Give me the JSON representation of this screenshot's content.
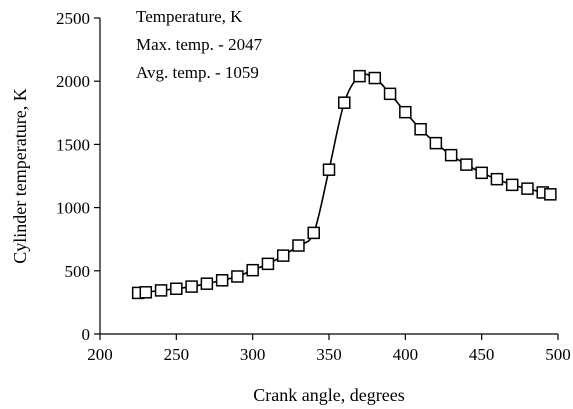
{
  "chart_data": {
    "type": "line",
    "title": "",
    "xlabel": "Crank angle, degrees",
    "ylabel": "Cylinder temperature, K",
    "xlim": [
      200,
      500
    ],
    "ylim": [
      0,
      2500
    ],
    "x_ticks": [
      "200",
      "250",
      "300",
      "350",
      "400",
      "450",
      "500"
    ],
    "y_ticks": [
      "0",
      "500",
      "1000",
      "1500",
      "2000",
      "2500"
    ],
    "grid": false,
    "legend": "none",
    "annotations": [
      "Temperature, K",
      "Max. temp. - 2047",
      "Avg. temp. - 1059"
    ],
    "line_color": "#000000",
    "marker": "open-square",
    "series": [
      {
        "x": [
          225,
          230,
          240,
          250,
          260,
          270,
          280,
          290,
          300,
          310,
          320,
          330,
          340,
          350,
          360,
          370,
          380,
          390,
          400,
          410,
          420,
          430,
          440,
          450,
          460,
          470,
          480,
          490,
          495
        ],
        "y": [
          325,
          330,
          345,
          358,
          375,
          398,
          425,
          455,
          505,
          555,
          620,
          700,
          800,
          1300,
          1830,
          2040,
          2025,
          1900,
          1755,
          1620,
          1510,
          1415,
          1340,
          1275,
          1225,
          1180,
          1150,
          1120,
          1105
        ]
      }
    ]
  }
}
